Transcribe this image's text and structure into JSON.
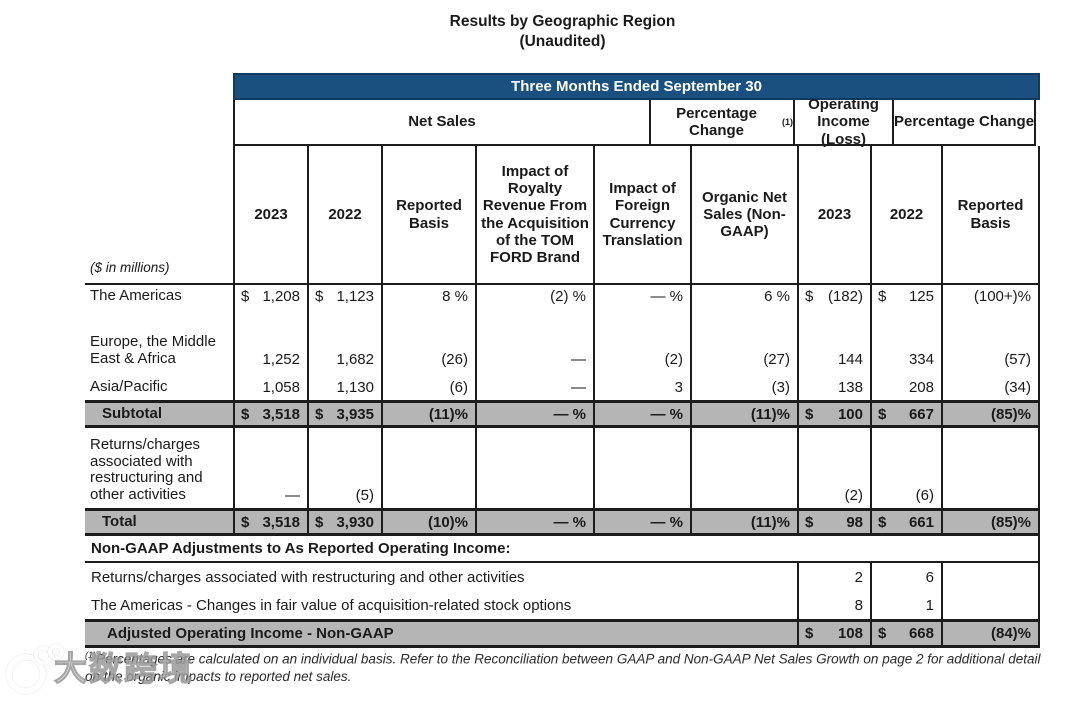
{
  "colors": {
    "header_blue": "#1a5080",
    "row_gray": "#b5b5b5",
    "border": "#1c1c1c"
  },
  "page": {
    "title_line1": "Results by Geographic Region",
    "title_line2": "(Unaudited)"
  },
  "table": {
    "span_header": "Three Months Ended September 30",
    "group_headers": [
      {
        "label": "Net Sales",
        "sup": ""
      },
      {
        "label": "Percentage Change",
        "sup": "(1)"
      },
      {
        "label": "Operating Income (Loss)",
        "sup": ""
      },
      {
        "label": "Percentage Change",
        "sup": ""
      }
    ],
    "units_label": "($ in millions)",
    "col_headers": [
      "2023",
      "2022",
      "Reported Basis",
      "Impact of Royalty Revenue From the Acquisition of the TOM FORD Brand",
      "Impact of Foreign Currency Translation",
      "Organic Net Sales (Non-GAAP)",
      "2023",
      "2022",
      "Reported Basis"
    ],
    "rows": [
      {
        "name": "the-americas",
        "label": "The Americas",
        "valign": "top",
        "gray": false,
        "height": 27,
        "cells": [
          {
            "c": "$",
            "v": "1,208"
          },
          {
            "c": "$",
            "v": "1,123"
          },
          {
            "v": "8 %"
          },
          {
            "v": "(2) %"
          },
          {
            "v": "— %"
          },
          {
            "v": "6 %"
          },
          {
            "c": "$",
            "v": "(182)"
          },
          {
            "c": "$",
            "v": "125"
          },
          {
            "v": "(100+)%"
          }
        ]
      },
      {
        "name": "europe-middle-east-africa",
        "label": "Europe, the Middle East & Africa",
        "valign": "bottom",
        "gray": false,
        "height": 60,
        "cells": [
          {
            "v": "1,252"
          },
          {
            "v": "1,682"
          },
          {
            "v": "(26)"
          },
          {
            "v": "—"
          },
          {
            "v": "(2)"
          },
          {
            "v": "(27)"
          },
          {
            "v": "144"
          },
          {
            "v": "334"
          },
          {
            "v": "(57)"
          }
        ]
      },
      {
        "name": "asia-pacific",
        "label": "Asia/Pacific",
        "valign": "bottom",
        "gray": false,
        "height": 28,
        "cells": [
          {
            "v": "1,058"
          },
          {
            "v": "1,130"
          },
          {
            "v": "(6)"
          },
          {
            "v": "—"
          },
          {
            "v": "3"
          },
          {
            "v": "(3)"
          },
          {
            "v": "138"
          },
          {
            "v": "208"
          },
          {
            "v": "(34)"
          }
        ]
      },
      {
        "name": "subtotal",
        "label": "Subtotal",
        "valign": "center",
        "gray": true,
        "height": 28,
        "cells": [
          {
            "c": "$",
            "v": "3,518"
          },
          {
            "c": "$",
            "v": "3,935"
          },
          {
            "v": "(11)%"
          },
          {
            "v": "— %"
          },
          {
            "v": "— %"
          },
          {
            "v": "(11)%"
          },
          {
            "c": "$",
            "v": "100"
          },
          {
            "c": "$",
            "v": "667"
          },
          {
            "v": "(85)%"
          }
        ]
      },
      {
        "name": "returns-charges",
        "label": "Returns/charges associated with restructuring and other activities",
        "valign": "bottom",
        "gray": false,
        "height": 80,
        "cells": [
          {
            "v": "—"
          },
          {
            "v": "(5)"
          },
          {},
          {},
          {},
          {},
          {
            "v": "(2)"
          },
          {
            "v": "(6)"
          },
          {}
        ]
      },
      {
        "name": "total",
        "label": "Total",
        "valign": "center",
        "gray": true,
        "height": 28,
        "cells": [
          {
            "c": "$",
            "v": "3,518"
          },
          {
            "c": "$",
            "v": "3,930"
          },
          {
            "v": "(10)%"
          },
          {
            "v": "— %"
          },
          {
            "v": "— %"
          },
          {
            "v": "(11)%"
          },
          {
            "c": "$",
            "v": "98"
          },
          {
            "c": "$",
            "v": "661"
          },
          {
            "v": "(85)%"
          }
        ]
      }
    ],
    "non_gaap_section": {
      "header": "Non-GAAP Adjustments to As Reported Operating Income:",
      "rows": [
        {
          "name": "adj-returns-charges",
          "label": "Returns/charges associated with restructuring and other activities",
          "gray": false,
          "height": 28,
          "cells": [
            {
              "v": "2"
            },
            {
              "v": "6"
            },
            {}
          ]
        },
        {
          "name": "adj-americas-stock-options",
          "label": "The Americas - Changes in fair value of acquisition-related stock options",
          "gray": false,
          "height": 28,
          "cells": [
            {
              "v": "8"
            },
            {
              "v": "1"
            },
            {}
          ]
        },
        {
          "name": "adjusted-operating-income",
          "label": "Adjusted Operating Income - Non-GAAP",
          "gray": true,
          "height": 29,
          "cells": [
            {
              "c": "$",
              "v": "108"
            },
            {
              "c": "$",
              "v": "668"
            },
            {
              "v": "(84)%"
            }
          ]
        }
      ]
    }
  },
  "footnote": {
    "sup": "(1)",
    "text": "Percentages are calculated on an individual basis. Refer to the Reconciliation between GAAP and Non-GAAP Net Sales Growth on page 2 for additional detail on the organic impacts to reported net sales."
  },
  "watermark": {
    "text": "大数跨境"
  }
}
